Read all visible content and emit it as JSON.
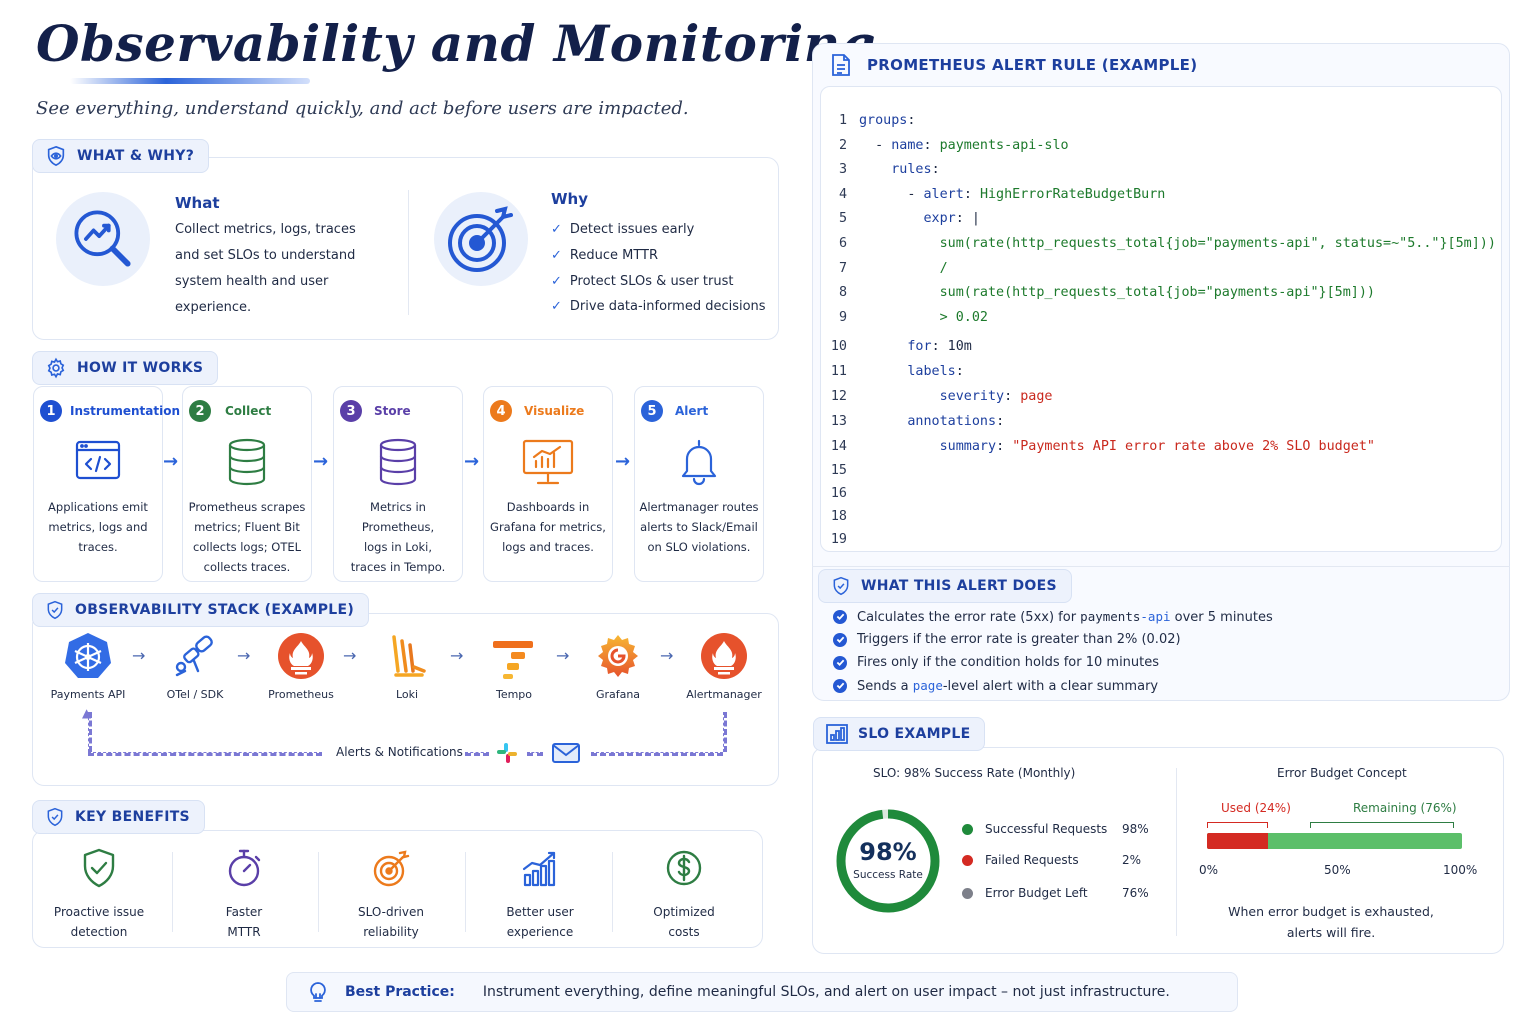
{
  "header": {
    "title": "Observability and Monitoring",
    "subtitle": "See everything, understand quickly, and act before users are impacted."
  },
  "what_why": {
    "pill": "WHAT & WHY?",
    "what_title": "What",
    "what_lines": [
      "Collect metrics, logs, traces",
      "and set SLOs to understand",
      "system health and user",
      "experience."
    ],
    "why_title": "Why",
    "why_items": [
      "Detect issues early",
      "Reduce MTTR",
      "Protect SLOs & user trust",
      "Drive data-informed decisions"
    ]
  },
  "how_it_works": {
    "pill": "HOW IT WORKS",
    "steps": [
      {
        "num": "1",
        "title": "Instrumentation",
        "color": "#1e4fd1",
        "lines": [
          "Applications emit",
          "metrics, logs and",
          "traces."
        ]
      },
      {
        "num": "2",
        "title": "Collect",
        "color": "#2e7d43",
        "lines": [
          "Prometheus scrapes",
          "metrics; Fluent Bit",
          "collects logs; OTEL",
          "collects traces."
        ]
      },
      {
        "num": "3",
        "title": "Store",
        "color": "#5a3fa8",
        "lines": [
          "Metrics in Prometheus,",
          "logs in Loki,",
          "traces in Tempo."
        ]
      },
      {
        "num": "4",
        "title": "Visualize",
        "color": "#ec7a1c",
        "lines": [
          "Dashboards in",
          "Grafana for metrics,",
          "logs and traces."
        ]
      },
      {
        "num": "5",
        "title": "Alert",
        "color": "#2b63d9",
        "lines": [
          "Alertmanager routes",
          "alerts to Slack/Email",
          "on SLO violations."
        ]
      }
    ]
  },
  "stack": {
    "pill": "OBSERVABILITY STACK (EXAMPLE)",
    "items": [
      "Payments API",
      "OTel / SDK",
      "Prometheus",
      "Loki",
      "Tempo",
      "Grafana",
      "Alertmanager"
    ],
    "loop_label": "Alerts & Notifications"
  },
  "benefits": {
    "pill": "KEY BENEFITS",
    "items": [
      {
        "lines": [
          "Proactive issue",
          "detection"
        ],
        "icon": "shield-check-icon"
      },
      {
        "lines": [
          "Faster",
          "MTTR"
        ],
        "icon": "stopwatch-icon"
      },
      {
        "lines": [
          "SLO-driven",
          "reliability"
        ],
        "icon": "target-icon"
      },
      {
        "lines": [
          "Better user",
          "experience"
        ],
        "icon": "bar-growth-icon"
      },
      {
        "lines": [
          "Optimized",
          "costs"
        ],
        "icon": "dollar-icon"
      }
    ]
  },
  "alert_rule": {
    "title": "PROMETHEUS ALERT RULE (EXAMPLE)",
    "lines": [
      {
        "n": "1",
        "indent": "",
        "parts": [
          [
            "k",
            "groups"
          ],
          [
            "d",
            ":"
          ]
        ]
      },
      {
        "n": "2",
        "indent": "  ",
        "parts": [
          [
            "d",
            "- "
          ],
          [
            "k",
            "name"
          ],
          [
            "d",
            ": "
          ],
          [
            "v",
            "payments-api-slo"
          ]
        ]
      },
      {
        "n": "3",
        "indent": "    ",
        "parts": [
          [
            "k",
            "rules"
          ],
          [
            "d",
            ":"
          ]
        ]
      },
      {
        "n": "4",
        "indent": "    ",
        "parts": [
          [
            "d",
            "  - "
          ],
          [
            "k",
            "alert"
          ],
          [
            "d",
            ": "
          ],
          [
            "v",
            "HighErrorRateBudgetBurn"
          ]
        ]
      },
      {
        "n": "5",
        "indent": "      ",
        "parts": [
          [
            "d",
            "  "
          ],
          [
            "k",
            "expr"
          ],
          [
            "d",
            ": |"
          ]
        ]
      },
      {
        "n": "6",
        "indent": "        ",
        "parts": [
          [
            "v",
            "  sum(rate(http_requests_total{job=\"payments-api\", status=~\"5..\"}[5m]))"
          ]
        ]
      },
      {
        "n": "7",
        "indent": "        ",
        "parts": [
          [
            "v",
            "  /"
          ]
        ]
      },
      {
        "n": "8",
        "indent": "        ",
        "parts": [
          [
            "v",
            "  sum(rate(http_requests_total{job=\"payments-api\"}[5m]))"
          ]
        ]
      },
      {
        "n": "9",
        "indent": "        ",
        "parts": [
          [
            "v",
            "  > 0.02"
          ]
        ]
      },
      {
        "n": "10",
        "indent": "      ",
        "parts": [
          [
            "k",
            "for"
          ],
          [
            "d",
            ": 10m"
          ]
        ]
      },
      {
        "n": "11",
        "indent": "      ",
        "parts": [
          [
            "k",
            "labels"
          ],
          [
            "d",
            ":"
          ]
        ]
      },
      {
        "n": "12",
        "indent": "        ",
        "parts": [
          [
            "d",
            "  "
          ],
          [
            "k",
            "severity"
          ],
          [
            "d",
            ": "
          ],
          [
            "s",
            "page"
          ]
        ]
      },
      {
        "n": "13",
        "indent": "      ",
        "parts": [
          [
            "k",
            "annotations"
          ],
          [
            "d",
            ":"
          ]
        ]
      },
      {
        "n": "14",
        "indent": "        ",
        "parts": [
          [
            "d",
            "  "
          ],
          [
            "k",
            "summary"
          ],
          [
            "d",
            ": "
          ],
          [
            "s",
            "\"Payments API error rate above 2% SLO budget\""
          ]
        ]
      },
      {
        "n": "15",
        "indent": "",
        "parts": []
      },
      {
        "n": "16",
        "indent": "",
        "parts": []
      },
      {
        "n": "18",
        "indent": "",
        "parts": []
      },
      {
        "n": "19",
        "indent": "",
        "parts": []
      }
    ]
  },
  "alert_does": {
    "pill": "WHAT THIS ALERT DOES",
    "items": [
      [
        [
          "t",
          "Calculates the error rate (5xx) for "
        ],
        [
          "m",
          "payments"
        ],
        [
          "b",
          "-api"
        ],
        [
          "t",
          " over 5 minutes"
        ]
      ],
      [
        [
          "t",
          "Triggers if the error rate is greater than 2% (0.02)"
        ]
      ],
      [
        [
          "t",
          "Fires only if the condition holds for 10 minutes"
        ]
      ],
      [
        [
          "t",
          "Sends a "
        ],
        [
          "b",
          "page"
        ],
        [
          "t",
          "-level alert with a clear summary"
        ]
      ]
    ]
  },
  "slo": {
    "pill": "SLO EXAMPLE",
    "left_title": "SLO: 98% Success Rate (Monthly)",
    "gauge_value": "98%",
    "gauge_label": "Success Rate",
    "gauge_fraction": 0.98,
    "legend": [
      {
        "label": "Successful Requests",
        "value": "98%",
        "color": "#1f8a3b"
      },
      {
        "label": "Failed Requests",
        "value": "2%",
        "color": "#d42a22"
      },
      {
        "label": "Error Budget Left",
        "value": "76%",
        "color": "#7d808a"
      }
    ],
    "right_title": "Error Budget Concept",
    "used_label": "Used (24%)",
    "remaining_label": "Remaining (76%)",
    "used_fraction": 0.24,
    "ticks": [
      "0%",
      "50%",
      "100%"
    ],
    "note_lines": [
      "When error budget is exhausted,",
      "alerts will fire."
    ]
  },
  "best_practice": {
    "label": "Best Practice:",
    "text": "Instrument everything, define meaningful SLOs, and alert on user impact – not just infrastructure."
  }
}
